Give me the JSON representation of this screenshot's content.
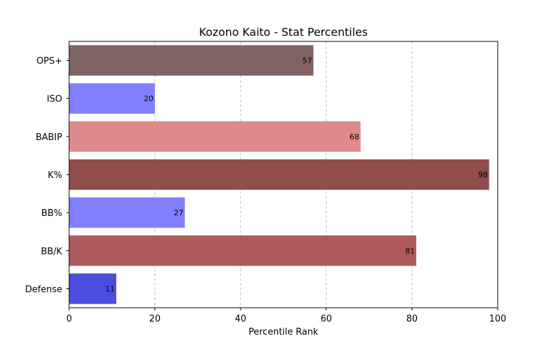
{
  "chart_data": {
    "type": "bar",
    "orientation": "horizontal",
    "title": "Kozono Kaito - Stat Percentiles",
    "xlabel": "Percentile Rank",
    "ylabel": "",
    "xlim": [
      0,
      100
    ],
    "x_ticks": [
      "0",
      "20",
      "40",
      "60",
      "80",
      "100"
    ],
    "grid": "x-axis dashed",
    "legend": "none",
    "categories": [
      "OPS+",
      "ISO",
      "BABIP",
      "K%",
      "BB%",
      "BB/K",
      "Defense"
    ],
    "values": [
      57,
      20,
      68,
      98,
      27,
      81,
      11
    ],
    "colors": [
      "#806464",
      "#8080ff",
      "#df8b8b",
      "#914c4c",
      "#8080ff",
      "#ae5a5a",
      "#4c4cdf"
    ]
  }
}
